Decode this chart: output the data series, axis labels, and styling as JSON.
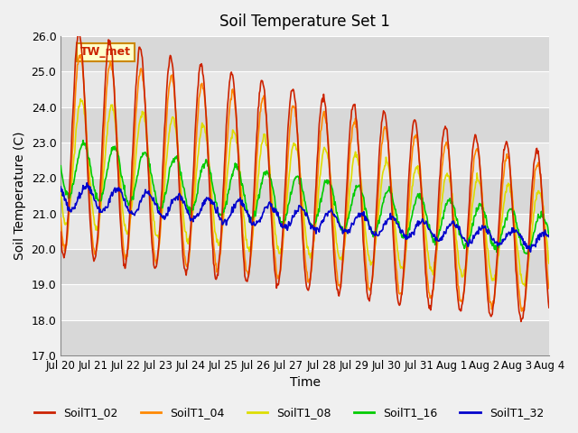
{
  "title": "Soil Temperature Set 1",
  "xlabel": "Time",
  "ylabel": "Soil Temperature (C)",
  "ylim": [
    17.0,
    26.0
  ],
  "yticks": [
    17.0,
    18.0,
    19.0,
    20.0,
    21.0,
    22.0,
    23.0,
    24.0,
    25.0,
    26.0
  ],
  "xtick_labels": [
    "Jul 20",
    "Jul 21",
    "Jul 22",
    "Jul 23",
    "Jul 24",
    "Jul 25",
    "Jul 26",
    "Jul 27",
    "Jul 28",
    "Jul 29",
    "Jul 30",
    "Jul 31",
    "Aug 1",
    "Aug 2",
    "Aug 3",
    "Aug 4"
  ],
  "annotation_text": "TW_met",
  "annotation_color": "#cc2200",
  "annotation_bg": "#ffffcc",
  "annotation_border": "#cc8800",
  "series_colors": {
    "SoilT1_02": "#cc2200",
    "SoilT1_04": "#ff8800",
    "SoilT1_08": "#dddd00",
    "SoilT1_16": "#00cc00",
    "SoilT1_32": "#0000cc"
  },
  "plot_bg_alt1": "#d8d8d8",
  "plot_bg_alt2": "#e8e8e8",
  "grid_color": "#ffffff",
  "legend_items": [
    "SoilT1_02",
    "SoilT1_04",
    "SoilT1_08",
    "SoilT1_16",
    "SoilT1_32"
  ]
}
